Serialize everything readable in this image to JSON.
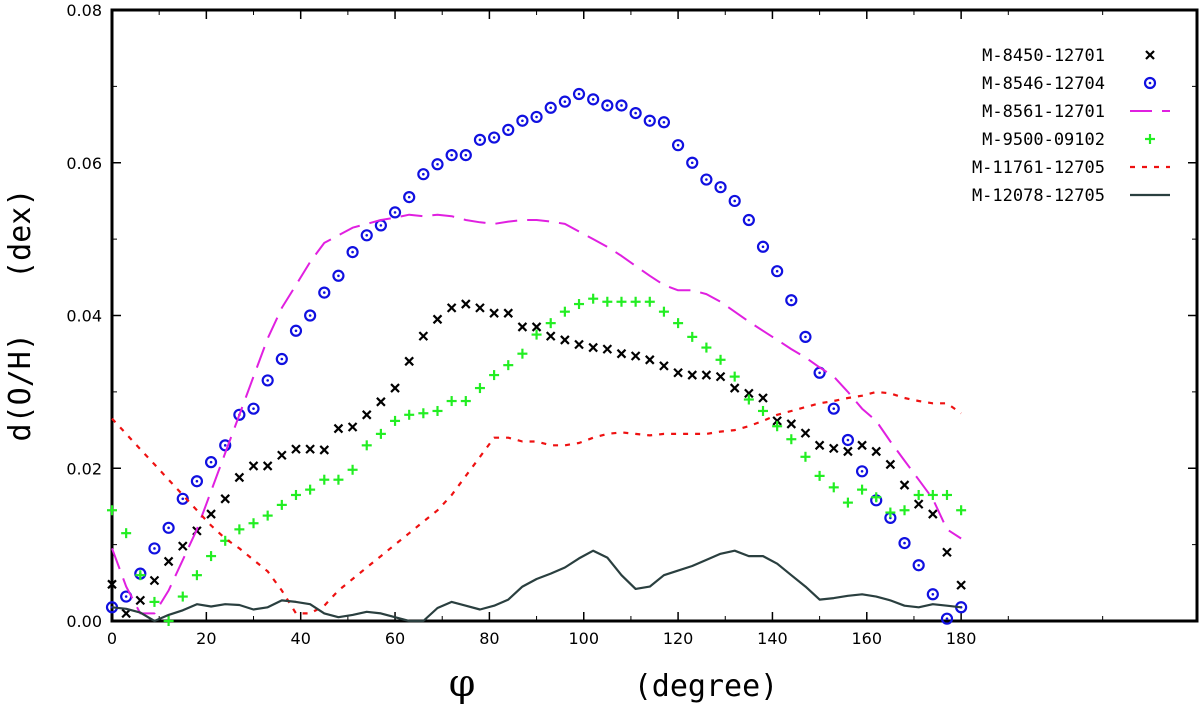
{
  "chart_data": {
    "type": "scatter",
    "xlabel_symbol": "φ",
    "xlabel": "(degree)",
    "ylabel": "d(O/H)   (dex)",
    "xlim": [
      0,
      230
    ],
    "ylim": [
      0,
      0.08
    ],
    "x_ticks": [
      0,
      20,
      40,
      60,
      80,
      100,
      120,
      140,
      160,
      180
    ],
    "y_ticks": [
      0.0,
      0.02,
      0.04,
      0.06,
      0.08
    ],
    "y_tick_labels": [
      "0.00",
      "0.02",
      "0.04",
      "0.06",
      "0.08"
    ],
    "legend_position": "top-right",
    "series": [
      {
        "name": "M-8450-12701",
        "style": "x-marker",
        "color": "#000000",
        "x": [
          0,
          3,
          6,
          9,
          12,
          15,
          18,
          21,
          24,
          27,
          30,
          33,
          36,
          39,
          42,
          45,
          48,
          51,
          54,
          57,
          60,
          63,
          66,
          69,
          72,
          75,
          78,
          81,
          84,
          87,
          90,
          93,
          96,
          99,
          102,
          105,
          108,
          111,
          114,
          117,
          120,
          123,
          126,
          129,
          132,
          135,
          138,
          141,
          144,
          147,
          150,
          153,
          156,
          159,
          162,
          165,
          168,
          171,
          174,
          177,
          180
        ],
        "values": [
          0.0048,
          0.001,
          0.0027,
          0.0053,
          0.0078,
          0.0098,
          0.0118,
          0.014,
          0.016,
          0.0188,
          0.0203,
          0.0203,
          0.0217,
          0.0225,
          0.0225,
          0.0224,
          0.0252,
          0.0254,
          0.027,
          0.0287,
          0.0305,
          0.034,
          0.0373,
          0.0395,
          0.041,
          0.0415,
          0.041,
          0.0403,
          0.0403,
          0.0385,
          0.0385,
          0.0373,
          0.0368,
          0.0362,
          0.0358,
          0.0356,
          0.035,
          0.0347,
          0.0342,
          0.0334,
          0.0325,
          0.0322,
          0.0322,
          0.032,
          0.0305,
          0.0298,
          0.0292,
          0.0262,
          0.0258,
          0.0246,
          0.023,
          0.0226,
          0.0222,
          0.023,
          0.0222,
          0.0205,
          0.0178,
          0.0153,
          0.014,
          0.009,
          0.0047
        ]
      },
      {
        "name": "M-8546-12704",
        "style": "circle-dot",
        "color": "#1010e0",
        "x": [
          0,
          3,
          6,
          9,
          12,
          15,
          18,
          21,
          24,
          27,
          30,
          33,
          36,
          39,
          42,
          45,
          48,
          51,
          54,
          57,
          60,
          63,
          66,
          69,
          72,
          75,
          78,
          81,
          84,
          87,
          90,
          93,
          96,
          99,
          102,
          105,
          108,
          111,
          114,
          117,
          120,
          123,
          126,
          129,
          132,
          135,
          138,
          141,
          144,
          147,
          150,
          153,
          156,
          159,
          162,
          165,
          168,
          171,
          174,
          177,
          180
        ],
        "values": [
          0.0018,
          0.0032,
          0.0062,
          0.0095,
          0.0122,
          0.016,
          0.0183,
          0.0208,
          0.023,
          0.027,
          0.0278,
          0.0315,
          0.0343,
          0.038,
          0.04,
          0.043,
          0.0452,
          0.0483,
          0.0505,
          0.0518,
          0.0535,
          0.0555,
          0.0585,
          0.0598,
          0.061,
          0.061,
          0.063,
          0.0633,
          0.0643,
          0.0655,
          0.066,
          0.0672,
          0.068,
          0.069,
          0.0683,
          0.0675,
          0.0675,
          0.0665,
          0.0655,
          0.0653,
          0.0623,
          0.06,
          0.0578,
          0.0568,
          0.055,
          0.0525,
          0.049,
          0.0458,
          0.042,
          0.0372,
          0.0325,
          0.0278,
          0.0237,
          0.0196,
          0.0158,
          0.0135,
          0.0102,
          0.0073,
          0.0035,
          0.0003,
          0.0018
        ]
      },
      {
        "name": "M-8561-12701",
        "style": "long-dash",
        "color": "#e020e0",
        "x": [
          0,
          3,
          6,
          9,
          12,
          15,
          18,
          21,
          24,
          27,
          30,
          33,
          36,
          39,
          42,
          45,
          48,
          51,
          54,
          57,
          60,
          63,
          66,
          69,
          72,
          75,
          78,
          81,
          84,
          87,
          90,
          93,
          96,
          99,
          102,
          105,
          108,
          111,
          114,
          117,
          120,
          123,
          126,
          129,
          132,
          135,
          138,
          141,
          144,
          147,
          150,
          153,
          156,
          159,
          162,
          165,
          168,
          171,
          174,
          177,
          180
        ],
        "values": [
          0.0095,
          0.0045,
          0.001,
          0.001,
          0.004,
          0.008,
          0.012,
          0.017,
          0.022,
          0.027,
          0.032,
          0.037,
          0.041,
          0.044,
          0.047,
          0.0495,
          0.0505,
          0.0515,
          0.052,
          0.0525,
          0.0528,
          0.0532,
          0.053,
          0.0532,
          0.053,
          0.0525,
          0.0522,
          0.052,
          0.0523,
          0.0525,
          0.0525,
          0.0523,
          0.052,
          0.051,
          0.05,
          0.049,
          0.0478,
          0.0465,
          0.0452,
          0.044,
          0.0433,
          0.0433,
          0.0428,
          0.0418,
          0.0405,
          0.0392,
          0.038,
          0.0368,
          0.0356,
          0.0345,
          0.0332,
          0.032,
          0.03,
          0.0278,
          0.0262,
          0.0235,
          0.021,
          0.0185,
          0.016,
          0.012,
          0.0108
        ]
      },
      {
        "name": "M-9500-09102",
        "style": "plus-marker",
        "color": "#22ee22",
        "x": [
          0,
          3,
          6,
          9,
          12,
          15,
          18,
          21,
          24,
          27,
          30,
          33,
          36,
          39,
          42,
          45,
          48,
          51,
          54,
          57,
          60,
          63,
          66,
          69,
          72,
          75,
          78,
          81,
          84,
          87,
          90,
          93,
          96,
          99,
          102,
          105,
          108,
          111,
          114,
          117,
          120,
          123,
          126,
          129,
          132,
          135,
          138,
          141,
          144,
          147,
          150,
          153,
          156,
          159,
          162,
          165,
          168,
          171,
          174,
          177,
          180
        ],
        "values": [
          0.0145,
          0.0115,
          0.006,
          0.0025,
          0.0,
          0.0032,
          0.006,
          0.0085,
          0.0105,
          0.012,
          0.0128,
          0.0138,
          0.0152,
          0.0165,
          0.0172,
          0.0185,
          0.0185,
          0.0198,
          0.023,
          0.0245,
          0.0262,
          0.027,
          0.0272,
          0.0275,
          0.0288,
          0.0288,
          0.0305,
          0.0322,
          0.0335,
          0.035,
          0.0375,
          0.039,
          0.0405,
          0.0415,
          0.0422,
          0.0418,
          0.0418,
          0.0418,
          0.0418,
          0.0405,
          0.039,
          0.0372,
          0.0358,
          0.0342,
          0.032,
          0.029,
          0.0275,
          0.0255,
          0.0238,
          0.0215,
          0.019,
          0.0175,
          0.0155,
          0.0172,
          0.0162,
          0.0142,
          0.0145,
          0.0165,
          0.0165,
          0.0165,
          0.0145
        ]
      },
      {
        "name": "M-11761-12705",
        "style": "short-dash",
        "color": "#ee1111",
        "x": [
          0,
          3,
          6,
          9,
          12,
          15,
          18,
          21,
          24,
          27,
          30,
          33,
          36,
          39,
          42,
          45,
          48,
          51,
          54,
          57,
          60,
          63,
          66,
          69,
          72,
          75,
          78,
          81,
          84,
          87,
          90,
          93,
          96,
          99,
          102,
          105,
          108,
          111,
          114,
          117,
          120,
          123,
          126,
          129,
          132,
          135,
          138,
          141,
          144,
          147,
          150,
          153,
          156,
          159,
          162,
          165,
          168,
          171,
          174,
          177,
          180
        ],
        "values": [
          0.0265,
          0.0245,
          0.0225,
          0.0205,
          0.0185,
          0.0165,
          0.0145,
          0.0125,
          0.0108,
          0.0095,
          0.008,
          0.0065,
          0.004,
          0.001,
          0.001,
          0.002,
          0.004,
          0.0055,
          0.007,
          0.0085,
          0.01,
          0.0115,
          0.013,
          0.0145,
          0.0165,
          0.019,
          0.0215,
          0.024,
          0.024,
          0.0235,
          0.0235,
          0.023,
          0.023,
          0.0233,
          0.024,
          0.0245,
          0.0247,
          0.0245,
          0.0243,
          0.0245,
          0.0245,
          0.0245,
          0.0245,
          0.0248,
          0.025,
          0.0255,
          0.0262,
          0.027,
          0.0275,
          0.028,
          0.0285,
          0.0288,
          0.0292,
          0.0295,
          0.03,
          0.0298,
          0.0292,
          0.0288,
          0.0285,
          0.0285,
          0.0272
        ]
      },
      {
        "name": "M-12078-12705",
        "style": "solid",
        "color": "#2a3f3f",
        "x": [
          0,
          3,
          6,
          9,
          12,
          15,
          18,
          21,
          24,
          27,
          30,
          33,
          36,
          39,
          42,
          45,
          48,
          51,
          54,
          57,
          60,
          63,
          66,
          69,
          72,
          75,
          78,
          81,
          84,
          87,
          90,
          93,
          96,
          99,
          102,
          105,
          108,
          111,
          114,
          117,
          120,
          123,
          126,
          129,
          132,
          135,
          138,
          141,
          144,
          147,
          150,
          153,
          156,
          159,
          162,
          165,
          168,
          171,
          174,
          177,
          180
        ],
        "values": [
          0.0018,
          0.0016,
          0.0011,
          0.0,
          0.0008,
          0.0014,
          0.0022,
          0.0019,
          0.0022,
          0.0021,
          0.0015,
          0.0018,
          0.0027,
          0.0025,
          0.0022,
          0.001,
          0.0005,
          0.0008,
          0.0012,
          0.001,
          0.0005,
          0.0,
          0.0,
          0.0017,
          0.0025,
          0.002,
          0.0015,
          0.002,
          0.0028,
          0.0045,
          0.0055,
          0.0062,
          0.007,
          0.0082,
          0.0092,
          0.0083,
          0.006,
          0.0042,
          0.0045,
          0.006,
          0.0066,
          0.0072,
          0.008,
          0.0088,
          0.0092,
          0.0085,
          0.0085,
          0.0075,
          0.006,
          0.0045,
          0.0028,
          0.003,
          0.0033,
          0.0035,
          0.0032,
          0.0027,
          0.002,
          0.0018,
          0.0022,
          0.002,
          0.0018
        ]
      }
    ]
  }
}
